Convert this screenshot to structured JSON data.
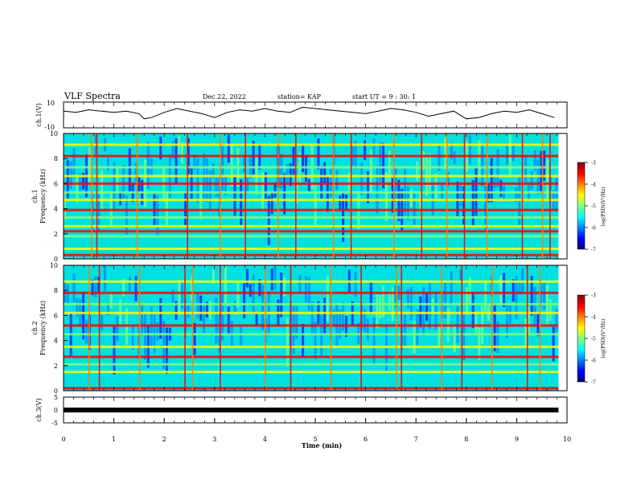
{
  "header": {
    "title": "VLF Spectra",
    "date": "Dec.22, 2022",
    "station": "station= KAP",
    "start": "start UT =  9 : 30: 1"
  },
  "colors": {
    "trace": "#000000",
    "colormap": [
      "#000080",
      "#0000ff",
      "#0080ff",
      "#00ffff",
      "#80ff80",
      "#ffff00",
      "#ff8000",
      "#ff0000",
      "#800000"
    ]
  },
  "chart_data": [
    {
      "type": "line",
      "ylabel": "ch.1(V)",
      "ylim": [
        -10,
        10
      ],
      "yticks": [
        "10",
        "-10"
      ],
      "xlim": [
        0,
        10
      ],
      "x": [
        0,
        0.25,
        0.5,
        0.75,
        1.0,
        1.25,
        1.5,
        1.6,
        1.75,
        2.0,
        2.25,
        2.5,
        2.75,
        3.0,
        3.25,
        3.5,
        3.75,
        4.0,
        4.25,
        4.5,
        4.75,
        5.0,
        5.25,
        5.5,
        5.75,
        6.0,
        6.25,
        6.5,
        6.75,
        7.0,
        7.25,
        7.5,
        7.75,
        8.0,
        8.25,
        8.5,
        8.75,
        9.0,
        9.25,
        9.5,
        9.75
      ],
      "y": [
        3,
        2,
        4,
        3,
        2,
        3,
        1,
        -3,
        -2,
        2,
        5,
        3,
        1,
        -2,
        2,
        4,
        3,
        5,
        3,
        2,
        6,
        5,
        4,
        3,
        2,
        1,
        3,
        5,
        4,
        2,
        -1,
        1,
        3,
        -3,
        -2,
        1,
        3,
        2,
        4,
        1,
        -2
      ]
    },
    {
      "type": "heatmap",
      "ylabel": "ch.1\nFrequency (kHz)",
      "ylim": [
        0,
        10
      ],
      "yticks": [
        "0",
        "2",
        "4",
        "6",
        "8",
        "10"
      ],
      "xlim": [
        0,
        10
      ],
      "colorbar": {
        "label": "log(PSD)(V²/Hz)",
        "range": [
          -7,
          -3
        ],
        "ticks": [
          "-3",
          "-4",
          "-5",
          "-6",
          "-7"
        ]
      },
      "bands_khz": [
        0.3,
        0.8,
        1.8,
        2.2,
        2.6,
        3.3,
        3.9,
        4.7,
        5.3,
        6.0,
        6.6,
        7.3,
        8.2,
        9.1
      ],
      "spikes_min": [
        0.55,
        0.65,
        1.45,
        2.45,
        3.1,
        3.6,
        4.25,
        4.6,
        5.35,
        5.7,
        6.55,
        7.1,
        7.6,
        7.95,
        8.4,
        9.1,
        9.5,
        9.65
      ]
    },
    {
      "type": "heatmap",
      "ylabel": "ch.2\nFrequency (kHz)",
      "ylim": [
        0,
        10
      ],
      "yticks": [
        "0",
        "2",
        "4",
        "6",
        "8",
        "10"
      ],
      "xlim": [
        0,
        10
      ],
      "colorbar": {
        "label": "log(PSD)(V²/Hz)",
        "range": [
          -7,
          -3
        ],
        "ticks": [
          "-3",
          "-4",
          "-5",
          "-6",
          "-7"
        ]
      },
      "bands_khz": [
        0.2,
        1.5,
        2.1,
        2.7,
        3.5,
        4.5,
        5.2,
        6.2,
        6.9,
        7.8,
        8.7
      ],
      "spikes_min": [
        0.5,
        0.7,
        1.5,
        2.4,
        2.55,
        3.1,
        4.0,
        4.5,
        5.3,
        5.9,
        6.6,
        6.7,
        7.5,
        7.9,
        8.5,
        9.2,
        9.45
      ]
    },
    {
      "type": "line",
      "ylabel": "ch.3(V)",
      "ylim": [
        -5,
        5
      ],
      "yticks": [
        "5",
        "0",
        "-5"
      ],
      "xlim": [
        0,
        10
      ],
      "x": [
        0,
        9.83
      ],
      "y": [
        0,
        0
      ]
    }
  ],
  "xaxis": {
    "label": "Time (min)",
    "ticks": [
      "0",
      "1",
      "2",
      "3",
      "4",
      "5",
      "6",
      "7",
      "8",
      "9",
      "10"
    ]
  }
}
